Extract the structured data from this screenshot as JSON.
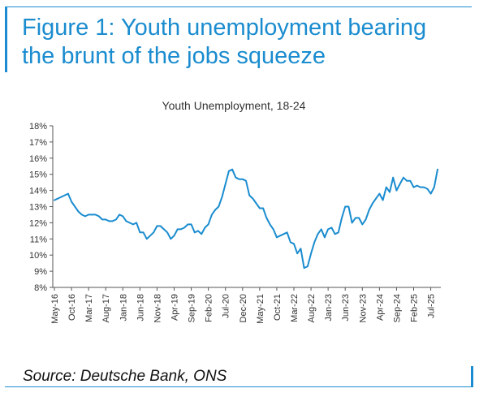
{
  "figure": {
    "title": "Figure 1: Youth unemployment bearing the brunt of the jobs squeeze",
    "source": "Source: Deutsche Bank, ONS",
    "accent_color": "#1a8ccf"
  },
  "chart_data": {
    "type": "line",
    "title": "Youth Unemployment, 18-24",
    "xlabel": "",
    "ylabel": "",
    "ylim": [
      8,
      18
    ],
    "yticks": [
      "8%",
      "9%",
      "10%",
      "11%",
      "12%",
      "13%",
      "14%",
      "15%",
      "16%",
      "17%",
      "18%"
    ],
    "xticks": [
      "May-16",
      "Oct-16",
      "Mar-17",
      "Aug-17",
      "Jan-18",
      "Jun-18",
      "Nov-18",
      "Apr-19",
      "Sep-19",
      "Feb-20",
      "Jul-20",
      "Dec-20",
      "May-21",
      "Oct-21",
      "Mar-22",
      "Aug-22",
      "Jan-23",
      "Jun-23",
      "Nov-23",
      "Apr-24",
      "Sep-24",
      "Feb-25",
      "Jul-25"
    ],
    "grid": false,
    "line_color": "#1a8ccf",
    "series": [
      {
        "x": [
          "May-16",
          "Jun-16",
          "Jul-16",
          "Aug-16",
          "Sep-16",
          "Oct-16",
          "Nov-16",
          "Dec-16",
          "Jan-17",
          "Feb-17",
          "Mar-17",
          "Apr-17",
          "May-17",
          "Jun-17",
          "Jul-17",
          "Aug-17",
          "Sep-17",
          "Oct-17",
          "Nov-17",
          "Dec-17",
          "Jan-18",
          "Feb-18",
          "Mar-18",
          "Apr-18",
          "May-18",
          "Jun-18",
          "Jul-18",
          "Aug-18",
          "Sep-18",
          "Oct-18",
          "Nov-18",
          "Dec-18",
          "Jan-19",
          "Feb-19",
          "Mar-19",
          "Apr-19",
          "May-19",
          "Jun-19",
          "Jul-19",
          "Aug-19",
          "Sep-19",
          "Oct-19",
          "Nov-19",
          "Dec-19",
          "Jan-20",
          "Feb-20",
          "Mar-20",
          "Apr-20",
          "May-20",
          "Jun-20",
          "Jul-20",
          "Aug-20",
          "Sep-20",
          "Oct-20",
          "Nov-20",
          "Dec-20",
          "Jan-21",
          "Feb-21",
          "Mar-21",
          "Apr-21",
          "May-21",
          "Jun-21",
          "Jul-21",
          "Aug-21",
          "Sep-21",
          "Oct-21",
          "Nov-21",
          "Dec-21",
          "Jan-22",
          "Feb-22",
          "Mar-22",
          "Apr-22",
          "May-22",
          "Jun-22",
          "Jul-22",
          "Aug-22",
          "Sep-22",
          "Oct-22",
          "Nov-22",
          "Dec-22",
          "Jan-23",
          "Feb-23",
          "Mar-23",
          "Apr-23",
          "May-23",
          "Jun-23",
          "Jul-23",
          "Aug-23",
          "Sep-23",
          "Oct-23",
          "Nov-23",
          "Dec-23",
          "Jan-24",
          "Feb-24",
          "Mar-24",
          "Apr-24",
          "May-24",
          "Jun-24",
          "Jul-24",
          "Aug-24",
          "Sep-24",
          "Oct-24",
          "Nov-24",
          "Dec-24",
          "Jan-25",
          "Feb-25",
          "Mar-25",
          "Apr-25",
          "May-25",
          "Jun-25",
          "Jul-25",
          "Aug-25",
          "Sep-25"
        ],
        "values": [
          13.4,
          13.5,
          13.6,
          13.7,
          13.8,
          13.3,
          13.0,
          12.7,
          12.5,
          12.4,
          12.5,
          12.5,
          12.5,
          12.4,
          12.2,
          12.2,
          12.1,
          12.1,
          12.2,
          12.5,
          12.4,
          12.1,
          12.0,
          11.9,
          12.0,
          11.4,
          11.4,
          11.0,
          11.2,
          11.4,
          11.8,
          11.8,
          11.6,
          11.4,
          11.0,
          11.2,
          11.6,
          11.6,
          11.7,
          11.9,
          11.9,
          11.4,
          11.5,
          11.3,
          11.7,
          11.9,
          12.5,
          12.8,
          13.0,
          13.6,
          14.4,
          15.2,
          15.3,
          14.8,
          14.7,
          14.7,
          14.6,
          13.7,
          13.5,
          13.2,
          12.9,
          12.9,
          12.3,
          11.9,
          11.6,
          11.1,
          11.2,
          11.3,
          11.4,
          10.8,
          10.7,
          10.1,
          10.4,
          9.2,
          9.3,
          10.1,
          10.8,
          11.3,
          11.6,
          11.1,
          11.6,
          11.7,
          11.3,
          11.4,
          12.3,
          13.0,
          13.0,
          12.0,
          12.3,
          12.3,
          11.9,
          12.2,
          12.8,
          13.2,
          13.5,
          13.8,
          13.4,
          14.2,
          13.9,
          14.8,
          14.0,
          14.4,
          14.8,
          14.6,
          14.6,
          14.2,
          14.3,
          14.2,
          14.2,
          14.1,
          13.8,
          14.2,
          15.3
        ]
      }
    ]
  }
}
